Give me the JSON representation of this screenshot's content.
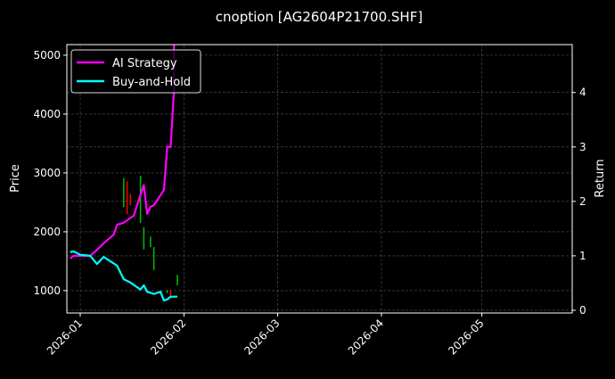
{
  "chart_data": {
    "type": "line",
    "title": "cnoption [AG2604P21700.SHF]",
    "xlabel": "",
    "ylabel_left": "Price",
    "ylabel_right": "Return",
    "xlim": [
      "2025-12-28",
      "2026-05-28"
    ],
    "ylim_left": [
      620,
      5180
    ],
    "ylim_right": [
      -0.05,
      4.88
    ],
    "x_ticks": [
      "2026-01-01",
      "2026-02-01",
      "2026-03-01",
      "2026-04-01",
      "2026-05-01"
    ],
    "x_tick_labels": [
      "2026-01",
      "2026-02",
      "2026-03",
      "2026-04",
      "2026-05"
    ],
    "y_ticks_left": [
      1000,
      2000,
      3000,
      4000,
      5000
    ],
    "y_ticks_right": [
      0,
      1,
      2,
      3,
      4
    ],
    "grid": true,
    "legend_placement": "top-left",
    "background": "#000000",
    "series": [
      {
        "name": "AI Strategy",
        "axis": "right",
        "color": "#ff00ff",
        "x": [
          "2025-12-29",
          "2025-12-30",
          "2026-01-04",
          "2026-01-06",
          "2026-01-08",
          "2026-01-11",
          "2026-01-12",
          "2026-01-14",
          "2026-01-17",
          "2026-01-18",
          "2026-01-20",
          "2026-01-21",
          "2026-01-22",
          "2026-01-23",
          "2026-01-26",
          "2026-01-27",
          "2026-01-28",
          "2026-01-29",
          "2026-01-29"
        ],
        "y": [
          0.95,
          1.0,
          1.0,
          1.11,
          1.23,
          1.39,
          1.57,
          1.61,
          1.74,
          1.93,
          2.3,
          1.77,
          1.9,
          1.93,
          2.21,
          3.0,
          3.0,
          4.02,
          5.2
        ]
      },
      {
        "name": "Buy-and-Hold",
        "axis": "right",
        "color": "#00ffff",
        "x": [
          "2025-12-29",
          "2025-12-30",
          "2026-01-01",
          "2026-01-04",
          "2026-01-06",
          "2026-01-08",
          "2026-01-12",
          "2026-01-14",
          "2026-01-16",
          "2026-01-19",
          "2026-01-20",
          "2026-01-21",
          "2026-01-23",
          "2026-01-25",
          "2026-01-26",
          "2026-01-27",
          "2026-01-28",
          "2026-01-30"
        ],
        "y": [
          1.07,
          1.08,
          1.02,
          1.0,
          0.85,
          0.98,
          0.82,
          0.57,
          0.51,
          0.38,
          0.46,
          0.34,
          0.3,
          0.34,
          0.18,
          0.2,
          0.25,
          0.25
        ]
      }
    ],
    "candles": [
      {
        "date": "2026-01-14",
        "high": 2910,
        "low": 2420,
        "direction": "green"
      },
      {
        "date": "2026-01-15",
        "high": 2860,
        "low": 2300,
        "direction": "red"
      },
      {
        "date": "2026-01-16",
        "high": 2640,
        "low": 2450,
        "direction": "red"
      },
      {
        "date": "2026-01-19",
        "high": 2950,
        "low": 2150,
        "direction": "green"
      },
      {
        "date": "2026-01-20",
        "high": 2080,
        "low": 1700,
        "direction": "green"
      },
      {
        "date": "2026-01-22",
        "high": 1920,
        "low": 1740,
        "direction": "green"
      },
      {
        "date": "2026-01-23",
        "high": 1740,
        "low": 1350,
        "direction": "green"
      },
      {
        "date": "2026-01-27",
        "high": 1010,
        "low": 960,
        "direction": "green"
      },
      {
        "date": "2026-01-28",
        "high": 1015,
        "low": 910,
        "direction": "red"
      },
      {
        "date": "2026-01-30",
        "high": 1270,
        "low": 1090,
        "direction": "green"
      }
    ],
    "colors": {
      "red": "#ff0000",
      "green": "#00c000"
    }
  }
}
